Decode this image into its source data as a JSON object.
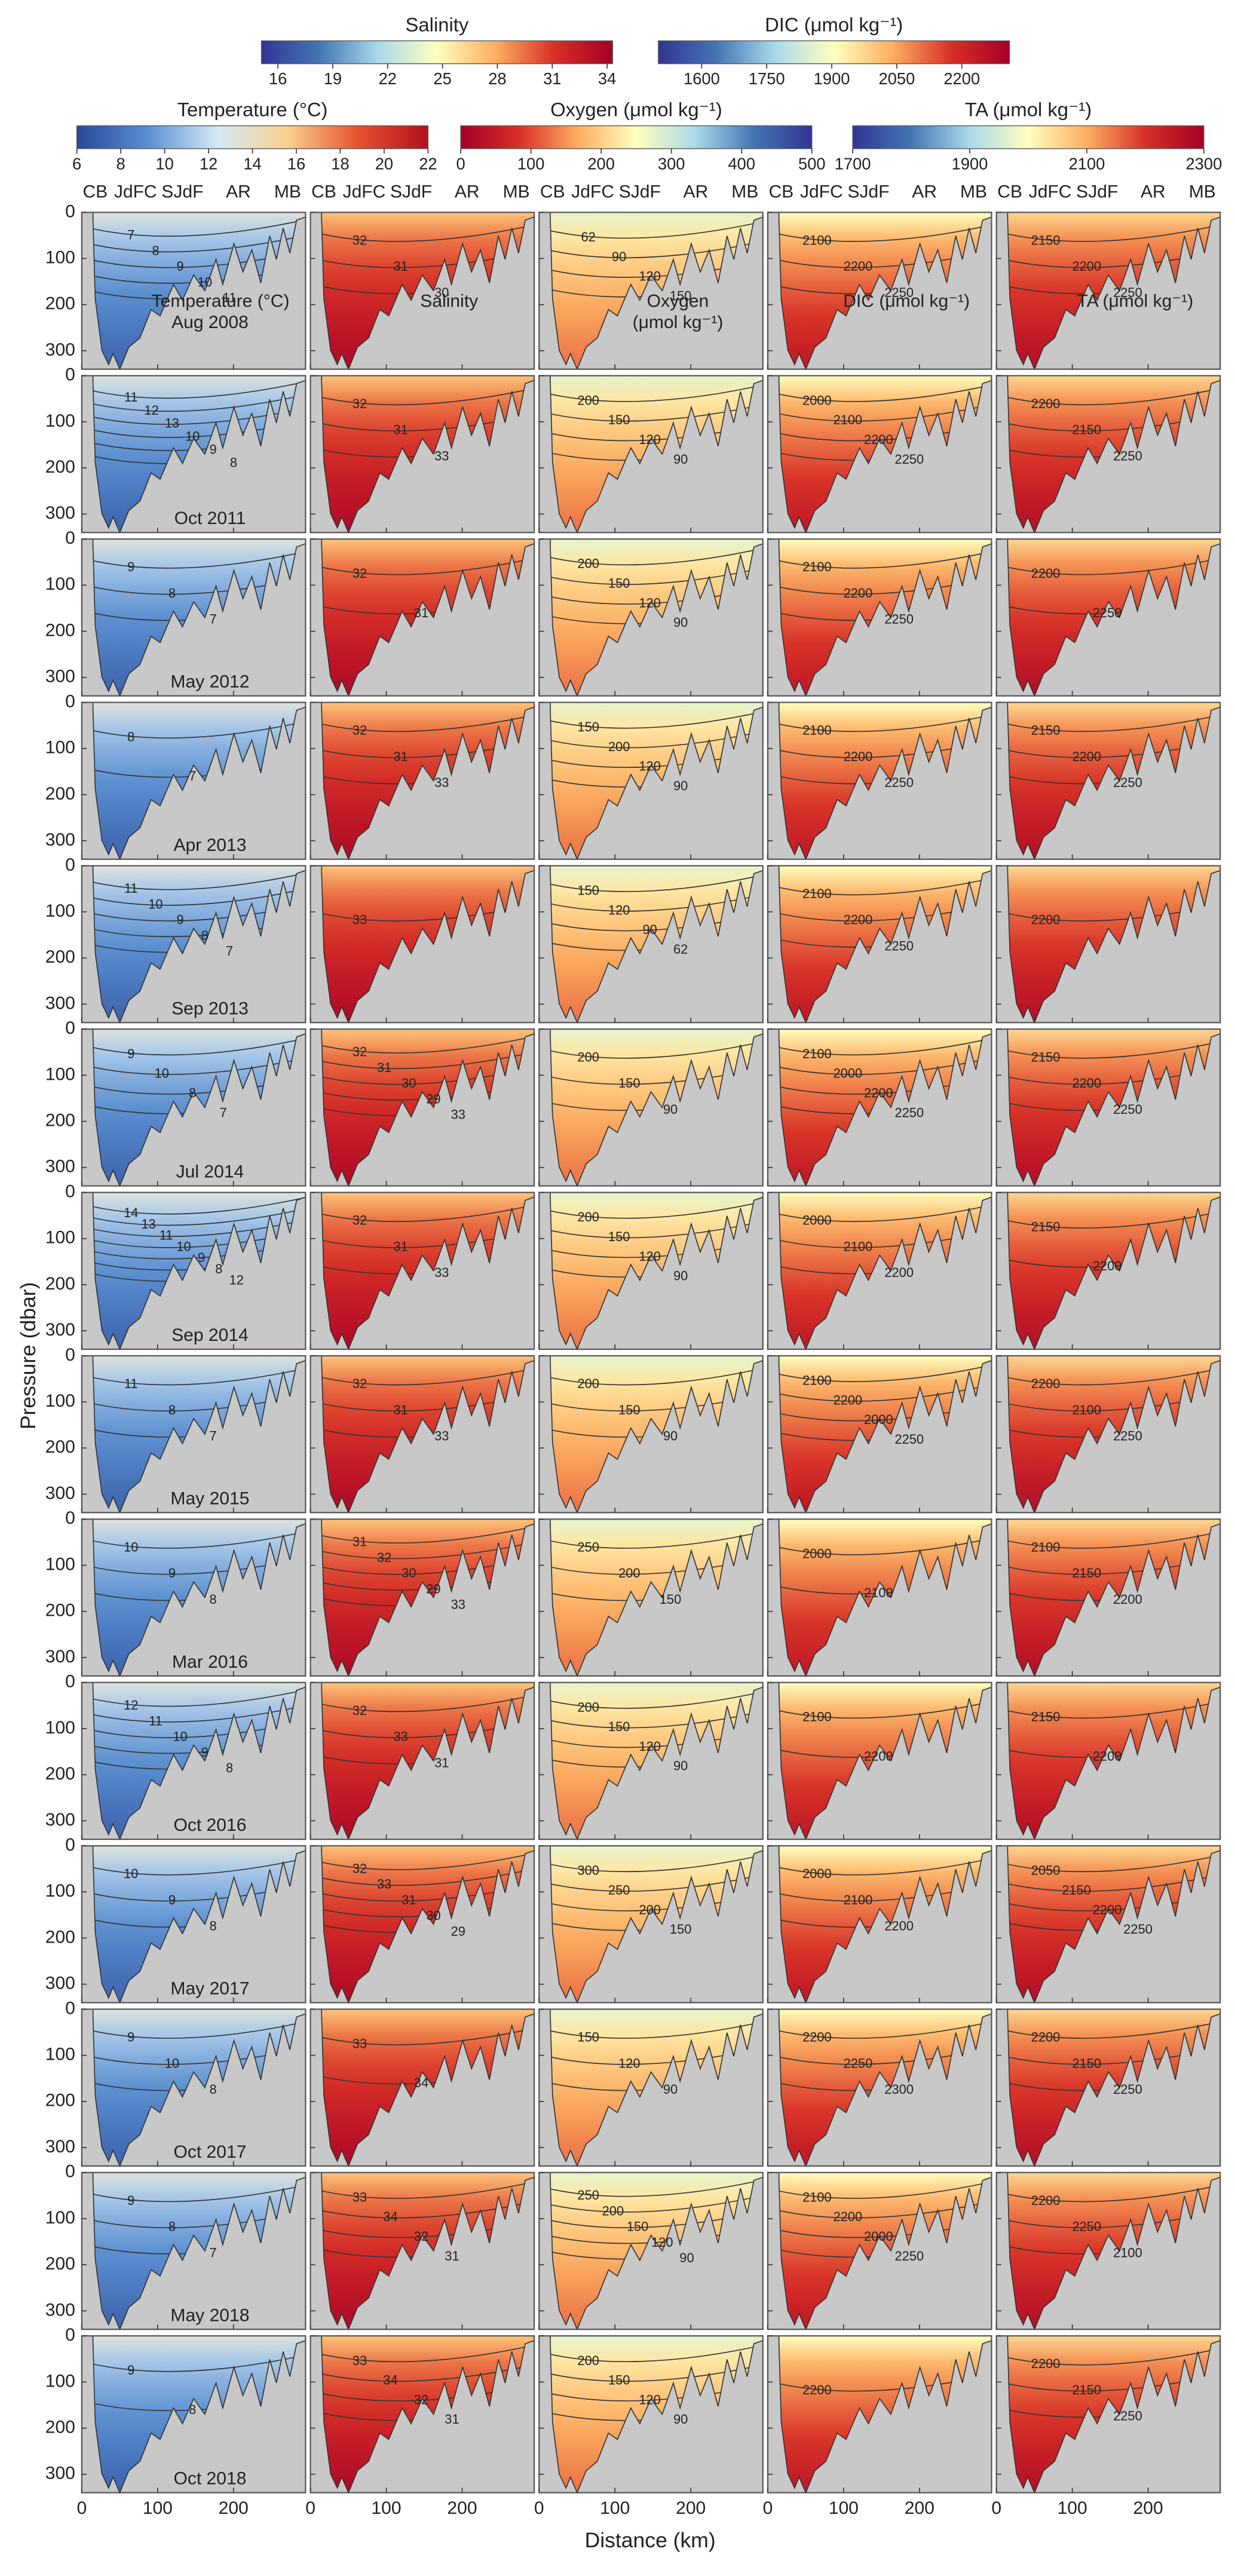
{
  "chart_data": {
    "type": "contour",
    "colorbars": [
      {
        "title": "Temperature (°C)",
        "lim": [
          6,
          22
        ],
        "ticks": [
          6,
          8,
          10,
          12,
          14,
          16,
          18,
          20,
          22
        ],
        "colors": [
          "#2a4898",
          "#5a8ed0",
          "#d4e9f6",
          "#f9d08e",
          "#e7522f",
          "#b3101f"
        ]
      },
      {
        "title": "Salinity",
        "lim": [
          15.1,
          34.3
        ],
        "ticks": [
          16,
          19,
          22,
          25,
          28,
          31,
          34
        ],
        "colors": [
          "#313695",
          "#4575b4",
          "#abd9e9",
          "#ffffbf",
          "#fdae61",
          "#d73027",
          "#a50026"
        ]
      },
      {
        "title": "Oxygen (μmol kg⁻¹)",
        "lim": [
          0,
          500
        ],
        "ticks": [
          0,
          100,
          200,
          300,
          400,
          500
        ],
        "colors": [
          "#a50026",
          "#d73027",
          "#fdae61",
          "#ffffbf",
          "#abd9e9",
          "#4575b4",
          "#313695"
        ]
      },
      {
        "title": "DIC (μmol kg⁻¹)",
        "lim": [
          1500,
          2310
        ],
        "ticks": [
          1600,
          1750,
          1900,
          2050,
          2200
        ],
        "colors": [
          "#313695",
          "#4575b4",
          "#abd9e9",
          "#ffffbf",
          "#fdae61",
          "#d73027",
          "#a50026"
        ]
      },
      {
        "title": "TA (μmol kg⁻¹)",
        "lim": [
          1700,
          2300
        ],
        "ticks": [
          1700,
          1900,
          2100,
          2300
        ],
        "colors": [
          "#313695",
          "#4575b4",
          "#abd9e9",
          "#ffffbf",
          "#fdae61",
          "#d73027",
          "#a50026"
        ]
      }
    ],
    "sections": [
      "CB",
      "JdFC",
      "SJdF",
      "AR",
      "MB"
    ],
    "panel_labels": [
      [
        "Temperature (°C)"
      ],
      [
        "Salinity"
      ],
      [
        "Oxygen",
        "(μmol kg⁻¹)"
      ],
      [
        "DIC (μmol kg⁻¹)"
      ],
      [
        "TA (μmol kg⁻¹)"
      ]
    ],
    "x_label": "Distance (km)",
    "y_label": "Pressure (dbar)",
    "xlim": [
      0,
      295
    ],
    "xticks": [
      0,
      100,
      200
    ],
    "ylim": [
      340,
      0
    ],
    "yticks": [
      0,
      100,
      200,
      300
    ],
    "rows": [
      {
        "date": "Aug 2008",
        "contours": [
          [
            7,
            8,
            9,
            10,
            11
          ],
          [
            32,
            31,
            30
          ],
          [
            62,
            90,
            120,
            150
          ],
          [
            2100,
            2200,
            2250
          ],
          [
            2150,
            2200,
            2250
          ]
        ]
      },
      {
        "date": "Oct 2011",
        "contours": [
          [
            11,
            12,
            13,
            10,
            9,
            8
          ],
          [
            32,
            31,
            33
          ],
          [
            200,
            150,
            120,
            90
          ],
          [
            2000,
            2100,
            2200,
            2250
          ],
          [
            2200,
            2150,
            2250
          ]
        ]
      },
      {
        "date": "May 2012",
        "contours": [
          [
            9,
            8,
            7
          ],
          [
            32,
            31
          ],
          [
            200,
            150,
            120,
            90
          ],
          [
            2100,
            2200,
            2250
          ],
          [
            2200,
            2250
          ]
        ]
      },
      {
        "date": "Apr 2013",
        "contours": [
          [
            8,
            7
          ],
          [
            32,
            31,
            33
          ],
          [
            150,
            200,
            120,
            90
          ],
          [
            2100,
            2200,
            2250
          ],
          [
            2150,
            2200,
            2250
          ]
        ]
      },
      {
        "date": "Sep 2013",
        "contours": [
          [
            11,
            10,
            9,
            8,
            7
          ],
          [
            33
          ],
          [
            150,
            120,
            90,
            62
          ],
          [
            2100,
            2200,
            2250
          ],
          [
            2200
          ]
        ]
      },
      {
        "date": "Jul 2014",
        "contours": [
          [
            9,
            10,
            8,
            7
          ],
          [
            32,
            31,
            30,
            29,
            33
          ],
          [
            200,
            150,
            90
          ],
          [
            2100,
            2000,
            2200,
            2250
          ],
          [
            2150,
            2200,
            2250
          ]
        ]
      },
      {
        "date": "Sep 2014",
        "contours": [
          [
            14,
            13,
            11,
            10,
            9,
            8,
            12
          ],
          [
            32,
            31,
            33
          ],
          [
            200,
            150,
            120,
            90
          ],
          [
            2000,
            2100,
            2200
          ],
          [
            2150,
            2200
          ]
        ]
      },
      {
        "date": "May 2015",
        "contours": [
          [
            11,
            8,
            7
          ],
          [
            32,
            31,
            33
          ],
          [
            200,
            150,
            90
          ],
          [
            2100,
            2200,
            2000,
            2250
          ],
          [
            2200,
            2100,
            2250
          ]
        ]
      },
      {
        "date": "Mar 2016",
        "contours": [
          [
            10,
            9,
            8
          ],
          [
            31,
            32,
            30,
            29,
            33
          ],
          [
            250,
            200,
            150
          ],
          [
            2000,
            2100
          ],
          [
            2100,
            2150,
            2200
          ]
        ]
      },
      {
        "date": "Oct 2016",
        "contours": [
          [
            12,
            11,
            10,
            9,
            8
          ],
          [
            32,
            33,
            31
          ],
          [
            200,
            150,
            120,
            90
          ],
          [
            2100,
            2200
          ],
          [
            2150,
            2200
          ]
        ]
      },
      {
        "date": "May 2017",
        "contours": [
          [
            10,
            9,
            8
          ],
          [
            32,
            33,
            31,
            30,
            29
          ],
          [
            300,
            250,
            200,
            150
          ],
          [
            2000,
            2100,
            2200
          ],
          [
            2050,
            2150,
            2200,
            2250
          ]
        ]
      },
      {
        "date": "Oct 2017",
        "contours": [
          [
            9,
            10,
            8
          ],
          [
            33,
            34
          ],
          [
            150,
            120,
            90
          ],
          [
            2200,
            2250,
            2300
          ],
          [
            2200,
            2150,
            2250
          ]
        ]
      },
      {
        "date": "May 2018",
        "contours": [
          [
            9,
            8,
            7
          ],
          [
            33,
            34,
            32,
            31
          ],
          [
            250,
            200,
            150,
            120,
            90
          ],
          [
            2100,
            2200,
            2000,
            2250
          ],
          [
            2200,
            2250,
            2100
          ]
        ]
      },
      {
        "date": "Oct 2018",
        "contours": [
          [
            9,
            8
          ],
          [
            33,
            34,
            32,
            31
          ],
          [
            200,
            150,
            120,
            90
          ],
          [
            2200
          ],
          [
            2200,
            2150,
            2250
          ]
        ]
      }
    ]
  }
}
